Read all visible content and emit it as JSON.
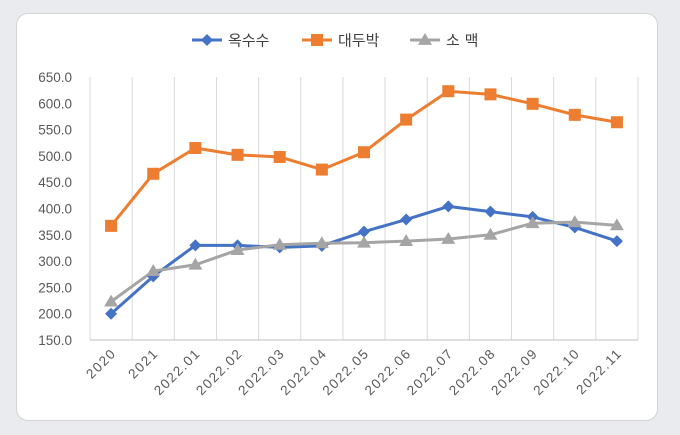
{
  "chart_data": {
    "type": "line",
    "title": "",
    "xlabel": "",
    "ylabel": "",
    "categories": [
      "2020",
      "2021",
      "2022.01",
      "2022.02",
      "2022.03",
      "2022.04",
      "2022.05",
      "2022.06",
      "2022.07",
      "2022.08",
      "2022.09",
      "2022.10",
      "2022.11"
    ],
    "ylim": [
      150,
      650
    ],
    "y_ticks": [
      "150.0",
      "200.0",
      "250.0",
      "300.0",
      "350.0",
      "400.0",
      "450.0",
      "500.0",
      "550.0",
      "600.0",
      "650.0"
    ],
    "grid": "vertical",
    "legend_position": "top",
    "series": [
      {
        "name": "옥수수",
        "color": "#4472c4",
        "marker": "diamond",
        "values": [
          200,
          271,
          330,
          330,
          326,
          329,
          356,
          379,
          404,
          394,
          384,
          364,
          338
        ]
      },
      {
        "name": "대두박",
        "color": "#ed7d31",
        "marker": "square",
        "values": [
          367,
          466,
          515,
          502,
          498,
          474,
          507,
          569,
          623,
          617,
          599,
          578,
          564
        ]
      },
      {
        "name": "소 맥",
        "color": "#a5a5a5",
        "marker": "triangle",
        "values": [
          223,
          281,
          293,
          321,
          331,
          334,
          335,
          338,
          342,
          350,
          372,
          374,
          368
        ]
      }
    ]
  }
}
